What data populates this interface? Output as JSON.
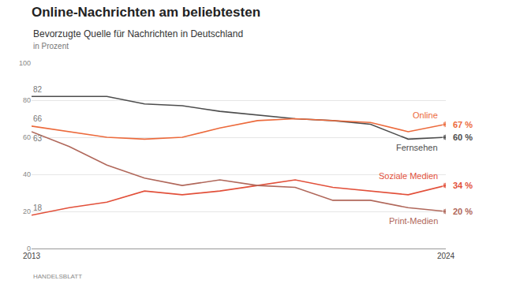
{
  "chart_data": {
    "type": "line",
    "title": "Online-Nachrichten am beliebtesten",
    "subtitle": "Bevorzugte Quelle für Nachrichten in Deutschland",
    "y_label": "in Prozent",
    "source": "HANDELSBLATT",
    "x": [
      2013,
      2014,
      2015,
      2016,
      2017,
      2018,
      2019,
      2020,
      2021,
      2022,
      2023,
      2024
    ],
    "xlim": [
      2013,
      2024
    ],
    "xticks": [
      2013,
      2024
    ],
    "ylim": [
      0,
      100
    ],
    "yticks": [
      0,
      20,
      40,
      60,
      80,
      100
    ],
    "grid": true,
    "marker": "last",
    "series": [
      {
        "name": "Fernsehen",
        "color": "#4d4d4d",
        "values": [
          82,
          82,
          82,
          78,
          77,
          74,
          72,
          70,
          69,
          67,
          59,
          60
        ],
        "value_labels": [
          "82",
          null,
          null,
          null,
          null,
          null,
          null,
          null,
          null,
          null,
          null,
          "60 %"
        ]
      },
      {
        "name": "Online",
        "color": "#ec6a3c",
        "values": [
          66,
          63,
          60,
          59,
          60,
          65,
          69,
          70,
          69,
          68,
          63,
          67
        ],
        "value_labels": [
          "66",
          null,
          null,
          null,
          null,
          null,
          null,
          null,
          null,
          null,
          null,
          "67 %"
        ]
      },
      {
        "name": "Soziale Medien",
        "color": "#e2503a",
        "values": [
          18,
          22,
          25,
          31,
          29,
          31,
          34,
          37,
          33,
          31,
          29,
          34
        ],
        "value_labels": [
          "18",
          null,
          null,
          null,
          null,
          null,
          null,
          null,
          null,
          null,
          null,
          "34 %"
        ]
      },
      {
        "name": "Print-Medien",
        "color": "#b0675a",
        "values": [
          63,
          55,
          45,
          38,
          34,
          37,
          34,
          33,
          26,
          26,
          22,
          20
        ],
        "value_labels": [
          "63",
          null,
          null,
          null,
          null,
          null,
          null,
          null,
          null,
          null,
          null,
          "20 %"
        ]
      }
    ]
  }
}
